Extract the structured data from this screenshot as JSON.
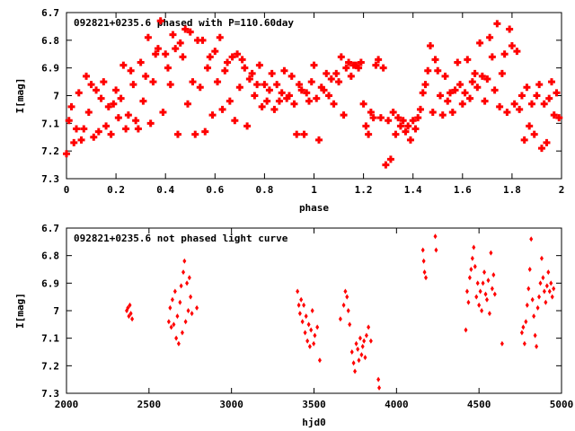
{
  "chart_data": [
    {
      "type": "scatter",
      "title": "092821+0235.6 phased with P=110.60day",
      "xlabel": "phase",
      "ylabel": "I[mag]",
      "xlim": [
        0,
        2
      ],
      "ylim": [
        7.3,
        6.7
      ],
      "y_inverted": true,
      "xticks": [
        "0",
        "0.2",
        "0.4",
        "0.6",
        "0.8",
        "1",
        "1.2",
        "1.4",
        "1.6",
        "1.8",
        "2"
      ],
      "yticks": [
        "6.7",
        "6.8",
        "6.9",
        "7",
        "7.1",
        "7.2",
        "7.3"
      ],
      "marker": "cross",
      "color": "#ff0000",
      "points": [
        [
          0.0,
          7.21
        ],
        [
          0.01,
          7.09
        ],
        [
          0.02,
          7.04
        ],
        [
          0.03,
          7.17
        ],
        [
          0.04,
          7.12
        ],
        [
          0.05,
          6.99
        ],
        [
          0.06,
          7.16
        ],
        [
          0.07,
          7.12
        ],
        [
          0.08,
          6.93
        ],
        [
          0.09,
          7.06
        ],
        [
          0.1,
          6.96
        ],
        [
          0.11,
          7.15
        ],
        [
          0.12,
          6.98
        ],
        [
          0.13,
          7.13
        ],
        [
          0.14,
          7.01
        ],
        [
          0.15,
          6.95
        ],
        [
          0.16,
          7.11
        ],
        [
          0.17,
          7.04
        ],
        [
          0.18,
          7.14
        ],
        [
          0.19,
          7.03
        ],
        [
          0.2,
          6.98
        ],
        [
          0.21,
          7.08
        ],
        [
          0.22,
          7.01
        ],
        [
          0.23,
          6.89
        ],
        [
          0.24,
          7.12
        ],
        [
          0.25,
          7.07
        ],
        [
          0.26,
          6.91
        ],
        [
          0.27,
          6.96
        ],
        [
          0.28,
          7.09
        ],
        [
          0.29,
          7.12
        ],
        [
          0.3,
          6.88
        ],
        [
          0.31,
          7.02
        ],
        [
          0.32,
          6.93
        ],
        [
          0.33,
          6.79
        ],
        [
          0.34,
          7.1
        ],
        [
          0.35,
          6.95
        ],
        [
          0.36,
          6.85
        ],
        [
          0.37,
          6.83
        ],
        [
          0.38,
          6.73
        ],
        [
          0.39,
          7.06
        ],
        [
          0.4,
          6.85
        ],
        [
          0.41,
          6.9
        ],
        [
          0.42,
          6.96
        ],
        [
          0.43,
          6.78
        ],
        [
          0.44,
          6.83
        ],
        [
          0.45,
          7.14
        ],
        [
          0.46,
          6.81
        ],
        [
          0.47,
          6.86
        ],
        [
          0.48,
          6.76
        ],
        [
          0.49,
          7.03
        ],
        [
          0.5,
          6.77
        ],
        [
          0.51,
          6.95
        ],
        [
          0.52,
          7.14
        ],
        [
          0.53,
          6.8
        ],
        [
          0.54,
          6.97
        ],
        [
          0.55,
          6.8
        ],
        [
          0.56,
          7.13
        ],
        [
          0.57,
          6.9
        ],
        [
          0.58,
          6.86
        ],
        [
          0.59,
          7.07
        ],
        [
          0.6,
          6.84
        ],
        [
          0.61,
          6.95
        ],
        [
          0.62,
          6.79
        ],
        [
          0.63,
          7.05
        ],
        [
          0.64,
          6.91
        ],
        [
          0.65,
          6.88
        ],
        [
          0.66,
          7.02
        ],
        [
          0.67,
          6.86
        ],
        [
          0.68,
          7.09
        ],
        [
          0.69,
          6.85
        ],
        [
          0.7,
          6.97
        ],
        [
          0.71,
          6.87
        ],
        [
          0.72,
          6.9
        ],
        [
          0.73,
          7.11
        ],
        [
          0.74,
          6.94
        ],
        [
          0.75,
          6.92
        ],
        [
          0.76,
          7.0
        ],
        [
          0.77,
          6.96
        ],
        [
          0.78,
          6.89
        ],
        [
          0.79,
          7.04
        ],
        [
          0.8,
          6.96
        ],
        [
          0.81,
          7.02
        ],
        [
          0.82,
          6.98
        ],
        [
          0.83,
          6.92
        ],
        [
          0.84,
          7.05
        ],
        [
          0.85,
          6.96
        ],
        [
          0.86,
          7.02
        ],
        [
          0.87,
          6.99
        ],
        [
          0.88,
          6.91
        ],
        [
          0.89,
          7.01
        ],
        [
          0.9,
          7.0
        ],
        [
          0.91,
          6.93
        ],
        [
          0.92,
          7.03
        ],
        [
          0.93,
          7.14
        ],
        [
          0.94,
          6.96
        ],
        [
          0.95,
          6.98
        ],
        [
          0.96,
          7.14
        ],
        [
          0.97,
          6.99
        ],
        [
          0.98,
          7.02
        ],
        [
          0.99,
          6.95
        ],
        [
          1.0,
          6.89
        ],
        [
          1.01,
          7.01
        ],
        [
          1.02,
          7.16
        ],
        [
          1.03,
          6.97
        ],
        [
          1.04,
          6.98
        ],
        [
          1.05,
          6.92
        ],
        [
          1.06,
          7.0
        ],
        [
          1.07,
          6.94
        ],
        [
          1.08,
          7.03
        ],
        [
          1.09,
          6.92
        ],
        [
          1.1,
          6.95
        ],
        [
          1.11,
          6.86
        ],
        [
          1.12,
          7.07
        ],
        [
          1.13,
          6.9
        ],
        [
          1.14,
          6.88
        ],
        [
          1.15,
          6.93
        ],
        [
          1.16,
          6.89
        ],
        [
          1.17,
          6.89
        ],
        [
          1.18,
          6.9
        ],
        [
          1.19,
          6.88
        ],
        [
          1.2,
          7.03
        ],
        [
          1.21,
          7.11
        ],
        [
          1.22,
          7.14
        ],
        [
          1.23,
          7.06
        ],
        [
          1.24,
          7.08
        ],
        [
          1.25,
          6.89
        ],
        [
          1.26,
          6.87
        ],
        [
          1.27,
          7.08
        ],
        [
          1.28,
          6.9
        ],
        [
          1.29,
          7.25
        ],
        [
          1.3,
          7.09
        ],
        [
          1.31,
          7.23
        ],
        [
          1.32,
          7.06
        ],
        [
          1.33,
          7.14
        ],
        [
          1.34,
          7.08
        ],
        [
          1.35,
          7.11
        ],
        [
          1.36,
          7.09
        ],
        [
          1.37,
          7.13
        ],
        [
          1.38,
          7.11
        ],
        [
          1.39,
          7.16
        ],
        [
          1.4,
          7.09
        ],
        [
          1.41,
          7.12
        ],
        [
          1.42,
          7.08
        ],
        [
          1.43,
          7.05
        ],
        [
          1.44,
          6.99
        ],
        [
          1.45,
          6.96
        ],
        [
          1.46,
          6.91
        ],
        [
          1.47,
          6.82
        ],
        [
          1.48,
          7.06
        ],
        [
          1.49,
          6.87
        ],
        [
          1.5,
          6.91
        ],
        [
          1.51,
          7.0
        ],
        [
          1.52,
          7.07
        ],
        [
          1.53,
          6.93
        ],
        [
          1.54,
          7.02
        ],
        [
          1.55,
          6.99
        ],
        [
          1.56,
          7.06
        ],
        [
          1.57,
          6.98
        ],
        [
          1.58,
          6.88
        ],
        [
          1.59,
          6.96
        ],
        [
          1.6,
          7.03
        ],
        [
          1.61,
          6.99
        ],
        [
          1.62,
          6.87
        ],
        [
          1.63,
          7.01
        ],
        [
          1.64,
          6.95
        ],
        [
          1.65,
          6.92
        ],
        [
          1.66,
          6.97
        ],
        [
          1.67,
          6.81
        ],
        [
          1.68,
          6.93
        ],
        [
          1.69,
          7.02
        ],
        [
          1.7,
          6.94
        ],
        [
          1.71,
          6.79
        ],
        [
          1.72,
          6.86
        ],
        [
          1.73,
          6.98
        ],
        [
          1.74,
          6.74
        ],
        [
          1.75,
          7.04
        ],
        [
          1.76,
          6.92
        ],
        [
          1.77,
          6.85
        ],
        [
          1.78,
          7.06
        ],
        [
          1.79,
          6.76
        ],
        [
          1.8,
          6.82
        ],
        [
          1.81,
          7.03
        ],
        [
          1.82,
          6.84
        ],
        [
          1.83,
          7.05
        ],
        [
          1.84,
          7.0
        ],
        [
          1.85,
          7.16
        ],
        [
          1.86,
          6.97
        ],
        [
          1.87,
          7.11
        ],
        [
          1.88,
          7.03
        ],
        [
          1.89,
          7.14
        ],
        [
          1.9,
          7.0
        ],
        [
          1.91,
          6.96
        ],
        [
          1.92,
          7.19
        ],
        [
          1.93,
          7.03
        ],
        [
          1.94,
          7.17
        ],
        [
          1.95,
          7.01
        ],
        [
          1.96,
          6.95
        ],
        [
          1.97,
          7.07
        ],
        [
          1.98,
          6.99
        ],
        [
          1.99,
          7.08
        ]
      ]
    },
    {
      "type": "scatter",
      "title": "092821+0235.6 not phased light curve",
      "xlabel": "hjd0",
      "ylabel": "I[mag]",
      "xlim": [
        2000,
        5000
      ],
      "ylim": [
        7.3,
        6.7
      ],
      "y_inverted": true,
      "xticks": [
        "2000",
        "2500",
        "3000",
        "3500",
        "4000",
        "4500",
        "5000"
      ],
      "yticks": [
        "6.7",
        "6.8",
        "6.9",
        "7",
        "7.1",
        "7.2",
        "7.3"
      ],
      "marker": "diamond",
      "color": "#ff0000",
      "points": [
        [
          2365,
          7.0
        ],
        [
          2372,
          6.99
        ],
        [
          2378,
          7.02
        ],
        [
          2384,
          6.98
        ],
        [
          2390,
          7.01
        ],
        [
          2398,
          7.03
        ],
        [
          2620,
          7.04
        ],
        [
          2628,
          6.99
        ],
        [
          2635,
          7.06
        ],
        [
          2642,
          6.96
        ],
        [
          2650,
          7.05
        ],
        [
          2658,
          6.93
        ],
        [
          2665,
          7.1
        ],
        [
          2672,
          7.02
        ],
        [
          2680,
          7.12
        ],
        [
          2688,
          6.97
        ],
        [
          2695,
          6.91
        ],
        [
          2702,
          7.08
        ],
        [
          2708,
          6.86
        ],
        [
          2715,
          6.82
        ],
        [
          2722,
          7.04
        ],
        [
          2730,
          6.9
        ],
        [
          2738,
          7.0
        ],
        [
          2745,
          6.88
        ],
        [
          2752,
          6.95
        ],
        [
          2760,
          7.01
        ],
        [
          2790,
          6.99
        ],
        [
          3400,
          6.93
        ],
        [
          3408,
          6.98
        ],
        [
          3415,
          7.01
        ],
        [
          3422,
          6.96
        ],
        [
          3430,
          7.04
        ],
        [
          3438,
          6.98
        ],
        [
          3446,
          7.08
        ],
        [
          3452,
          7.02
        ],
        [
          3460,
          7.11
        ],
        [
          3468,
          7.05
        ],
        [
          3475,
          7.13
        ],
        [
          3482,
          7.07
        ],
        [
          3490,
          7.0
        ],
        [
          3498,
          7.12
        ],
        [
          3505,
          7.09
        ],
        [
          3520,
          7.06
        ],
        [
          3535,
          7.18
        ],
        [
          3660,
          7.03
        ],
        [
          3680,
          6.98
        ],
        [
          3690,
          6.93
        ],
        [
          3700,
          6.95
        ],
        [
          3708,
          7.0
        ],
        [
          3716,
          7.05
        ],
        [
          3730,
          7.15
        ],
        [
          3740,
          7.19
        ],
        [
          3748,
          7.22
        ],
        [
          3756,
          7.12
        ],
        [
          3765,
          7.14
        ],
        [
          3772,
          7.18
        ],
        [
          3780,
          7.1
        ],
        [
          3788,
          7.16
        ],
        [
          3795,
          7.13
        ],
        [
          3803,
          7.11
        ],
        [
          3810,
          7.17
        ],
        [
          3818,
          7.09
        ],
        [
          3830,
          7.06
        ],
        [
          3845,
          7.11
        ],
        [
          3890,
          7.25
        ],
        [
          3895,
          7.28
        ],
        [
          4160,
          6.78
        ],
        [
          4165,
          6.82
        ],
        [
          4170,
          6.86
        ],
        [
          4178,
          6.88
        ],
        [
          4235,
          6.73
        ],
        [
          4240,
          6.78
        ],
        [
          4420,
          7.07
        ],
        [
          4428,
          6.93
        ],
        [
          4436,
          6.97
        ],
        [
          4444,
          6.88
        ],
        [
          4452,
          6.85
        ],
        [
          4460,
          6.81
        ],
        [
          4468,
          6.77
        ],
        [
          4476,
          6.84
        ],
        [
          4484,
          6.95
        ],
        [
          4492,
          6.9
        ],
        [
          4500,
          6.98
        ],
        [
          4508,
          6.93
        ],
        [
          4516,
          7.0
        ],
        [
          4524,
          6.9
        ],
        [
          4532,
          6.86
        ],
        [
          4540,
          6.94
        ],
        [
          4548,
          6.96
        ],
        [
          4556,
          6.89
        ],
        [
          4564,
          7.01
        ],
        [
          4572,
          6.79
        ],
        [
          4580,
          6.92
        ],
        [
          4588,
          6.87
        ],
        [
          4596,
          6.94
        ],
        [
          4640,
          7.12
        ],
        [
          4760,
          7.08
        ],
        [
          4768,
          7.06
        ],
        [
          4776,
          7.12
        ],
        [
          4784,
          7.04
        ],
        [
          4792,
          6.98
        ],
        [
          4800,
          6.92
        ],
        [
          4808,
          6.85
        ],
        [
          4816,
          6.74
        ],
        [
          4824,
          6.96
        ],
        [
          4832,
          7.02
        ],
        [
          4840,
          7.09
        ],
        [
          4848,
          7.13
        ],
        [
          4856,
          6.99
        ],
        [
          4864,
          6.95
        ],
        [
          4872,
          6.9
        ],
        [
          4880,
          6.81
        ],
        [
          4888,
          6.88
        ],
        [
          4896,
          6.93
        ],
        [
          4904,
          6.97
        ],
        [
          4912,
          6.91
        ],
        [
          4920,
          6.86
        ],
        [
          4928,
          6.93
        ],
        [
          4936,
          6.9
        ],
        [
          4944,
          6.95
        ],
        [
          4952,
          6.92
        ]
      ]
    }
  ]
}
